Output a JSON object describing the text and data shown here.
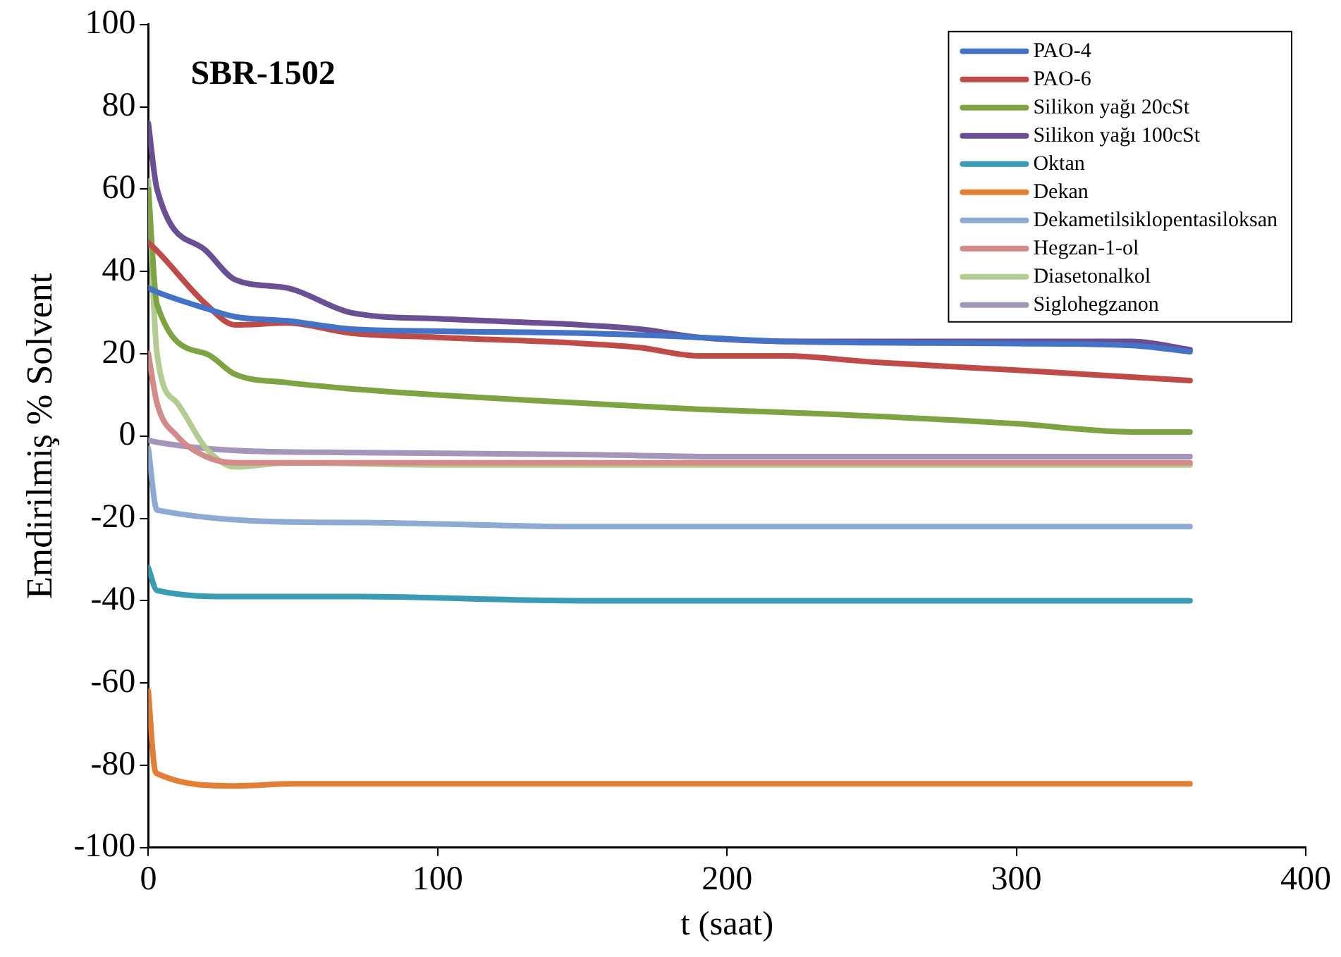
{
  "chart_data": {
    "type": "line",
    "title": "SBR-1502",
    "xlabel": "t (saat)",
    "ylabel": "Emdirilmiş % Solvent",
    "xlim": [
      0,
      400
    ],
    "xticks": [
      0,
      100,
      200,
      300,
      400
    ],
    "ylim": [
      -100,
      100
    ],
    "yticks": [
      -100,
      -80,
      -60,
      -40,
      -20,
      0,
      20,
      40,
      60,
      80,
      100
    ],
    "grid": false,
    "legend": "top right",
    "marker": "none",
    "line_style": "solid",
    "series": [
      {
        "name": "PAO-4",
        "color": "#4472c4",
        "x": [
          0,
          3,
          20,
          30,
          48,
          70,
          100,
          150,
          190,
          220,
          300,
          340,
          360
        ],
        "values": [
          36,
          35,
          31,
          29,
          28,
          26,
          25.5,
          25,
          24,
          23,
          22.5,
          22,
          20.5
        ]
      },
      {
        "name": "PAO-6",
        "color": "#be4b48",
        "x": [
          0,
          3,
          20,
          30,
          48,
          70,
          100,
          150,
          170,
          190,
          220,
          250,
          300,
          360
        ],
        "values": [
          47,
          45,
          32,
          27,
          27.5,
          25,
          24,
          22.5,
          21.5,
          19.5,
          19.5,
          18,
          16,
          13.5
        ]
      },
      {
        "name": "Silikon yağı 20cSt",
        "color": "#7ea343",
        "x": [
          0,
          3,
          20,
          30,
          48,
          70,
          100,
          150,
          190,
          230,
          300,
          340,
          360
        ],
        "values": [
          60,
          32,
          20,
          15,
          13,
          11.5,
          10,
          8,
          6.5,
          5.5,
          3,
          1,
          1
        ]
      },
      {
        "name": "Silikon yağı 100cSt",
        "color": "#6a4f92",
        "x": [
          0,
          3,
          20,
          30,
          48,
          70,
          100,
          150,
          170,
          190,
          220,
          300,
          340,
          360
        ],
        "values": [
          76,
          60,
          45,
          38,
          36,
          30,
          28.5,
          27,
          26,
          24,
          23,
          23,
          23,
          21
        ]
      },
      {
        "name": "Oktan",
        "color": "#3a9bb2",
        "x": [
          0,
          3,
          30,
          70,
          150,
          360
        ],
        "values": [
          -32,
          -37.5,
          -39,
          -39,
          -40,
          -40
        ]
      },
      {
        "name": "Dekan",
        "color": "#e07f35",
        "x": [
          0,
          2,
          3,
          30,
          50,
          360
        ],
        "values": [
          -62,
          -80,
          -82,
          -85,
          -84.5,
          -84.5
        ]
      },
      {
        "name": "Dekametilsiklopentasiloksan",
        "color": "#8faad2",
        "x": [
          0,
          3,
          70,
          150,
          360
        ],
        "values": [
          -3,
          -18,
          -21,
          -22,
          -22
        ]
      },
      {
        "name": "Hegzan-1-ol",
        "color": "#d38b89",
        "x": [
          0,
          3,
          10,
          20,
          30,
          48,
          360
        ],
        "values": [
          20,
          8,
          0,
          -5,
          -6.5,
          -6.5,
          -6.5
        ]
      },
      {
        "name": "Diasetonalkol",
        "color": "#b3cc92",
        "x": [
          0,
          3,
          10,
          20,
          30,
          48,
          100,
          360
        ],
        "values": [
          62,
          20,
          8,
          -3,
          -7.5,
          -6.5,
          -7,
          -7
        ]
      },
      {
        "name": "Siglohegzanon",
        "color": "#a496bb",
        "x": [
          0,
          3,
          30,
          70,
          150,
          200,
          360
        ],
        "values": [
          -1,
          -1.5,
          -3.5,
          -4,
          -4.5,
          -5,
          -5
        ]
      }
    ]
  }
}
